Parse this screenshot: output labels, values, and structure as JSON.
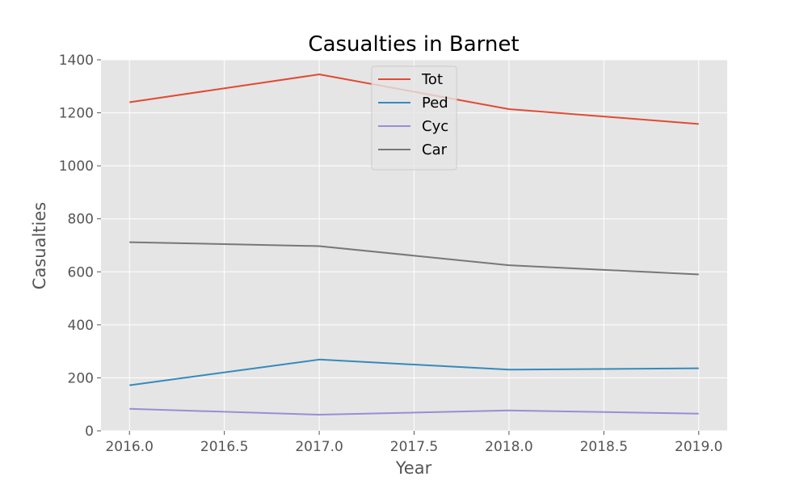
{
  "chart_data": {
    "type": "line",
    "title": "Casualties in Barnet",
    "xlabel": "Year",
    "ylabel": "Casualties",
    "x": [
      2016,
      2017,
      2018,
      2019
    ],
    "xlim": [
      2015.85,
      2019.15
    ],
    "ylim": [
      0,
      1400
    ],
    "xticks": [
      "2016.0",
      "2016.5",
      "2017.0",
      "2017.5",
      "2018.0",
      "2018.5",
      "2019.0"
    ],
    "yticks": [
      "0",
      "200",
      "400",
      "600",
      "800",
      "1000",
      "1200",
      "1400"
    ],
    "grid": true,
    "legend_position": "upper-center",
    "series": [
      {
        "name": "Tot",
        "color": "#e24a33",
        "values": [
          1240,
          1345,
          1214,
          1158
        ]
      },
      {
        "name": "Ped",
        "color": "#348abd",
        "values": [
          172,
          269,
          231,
          236
        ]
      },
      {
        "name": "Cyc",
        "color": "#988ed5",
        "values": [
          83,
          61,
          77,
          65
        ]
      },
      {
        "name": "Car",
        "color": "#777777",
        "values": [
          712,
          697,
          625,
          590
        ]
      }
    ]
  }
}
